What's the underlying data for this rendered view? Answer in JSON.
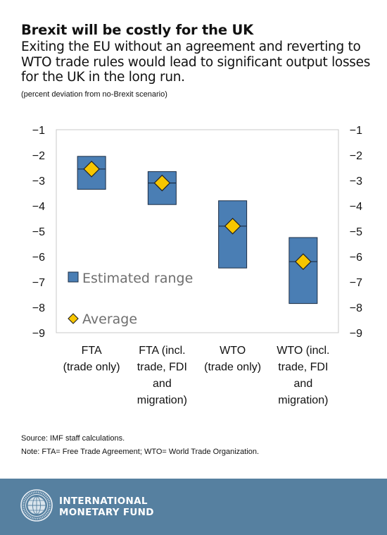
{
  "header": {
    "title": "Brexit will be costly for the UK",
    "subtitle": "Exiting the EU without an agreement and reverting to WTO trade rules would lead to significant output losses for the UK in the long run.",
    "units": "(percent deviation from no-Brexit scenario)"
  },
  "chart_data": {
    "type": "range-bar",
    "categories": [
      [
        "FTA",
        "(trade only)"
      ],
      [
        "FTA (incl.",
        "trade, FDI",
        "and",
        "migration)"
      ],
      [
        "WTO",
        "(trade only)"
      ],
      [
        "WTO (incl.",
        "trade, FDI",
        "and",
        "migration)"
      ]
    ],
    "series": [
      {
        "name": "Estimated range",
        "low": [
          -3.35,
          -3.95,
          -6.45,
          -7.85
        ],
        "high": [
          -2.05,
          -2.65,
          -3.8,
          -5.25
        ]
      },
      {
        "name": "Average",
        "values": [
          -2.55,
          -3.1,
          -4.8,
          -6.2
        ]
      }
    ],
    "ylim": [
      -9,
      -1
    ],
    "yticks": [
      -1,
      -2,
      -3,
      -4,
      -5,
      -6,
      -7,
      -8,
      -9
    ],
    "secondary_y_axis": true,
    "grid": false,
    "legend_position": "inside-bottom-left",
    "colors": {
      "range_fill": "#4a7eb4",
      "range_stroke": "#1c2d44",
      "marker_fill": "#f7c600",
      "marker_stroke": "#222222",
      "legend_text": "#6f6f6f"
    }
  },
  "footer": {
    "source": "Source: IMF staff calculations.",
    "note": "Note: FTA= Free Trade Agreement; WTO= World Trade Organization.",
    "org_line1": "INTERNATIONAL",
    "org_line2": "MONETARY FUND",
    "logo_icon": "imf-seal-icon",
    "background": "#5680a0"
  }
}
